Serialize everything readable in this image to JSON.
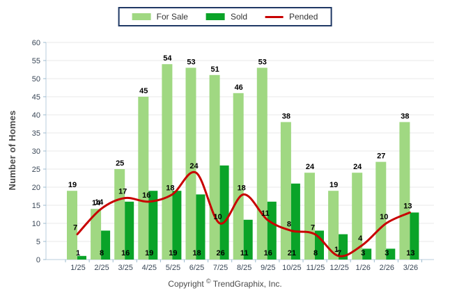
{
  "legend": {
    "items": [
      {
        "label": "For Sale",
        "color": "#A0D882",
        "type": "bar"
      },
      {
        "label": "Sold",
        "color": "#0AA328",
        "type": "bar"
      },
      {
        "label": "Pended",
        "color": "#C80000",
        "type": "line"
      }
    ]
  },
  "y_axis": {
    "title": "Number of Homes",
    "min": 0,
    "max": 60,
    "step": 5
  },
  "footer": {
    "copyright_prefix": "Copyright",
    "copyright_symbol": "©",
    "copyright_suffix": "TrendGraphix, Inc."
  },
  "colors": {
    "for_sale_bar": "#A0D882",
    "sold_bar": "#0AA328",
    "pended_line": "#C80000",
    "gridline": "#E9E9E9",
    "axis_line": "#B9CEDE",
    "tick_mark": "#9DBBCF",
    "tick_text": "#3A4757",
    "legend_border": "#1F3864"
  },
  "chart_data": {
    "type": "bar",
    "title": "",
    "xlabel": "",
    "ylabel": "Number of Homes",
    "ylim": [
      0,
      60
    ],
    "ytick_step": 5,
    "grid": true,
    "legend_position": "top-center",
    "categories": [
      "1/25",
      "2/25",
      "3/25",
      "4/25",
      "5/25",
      "6/25",
      "7/25",
      "8/25",
      "9/25",
      "10/25",
      "11/25",
      "12/25",
      "1/26",
      "2/26",
      "3/26"
    ],
    "series": [
      {
        "name": "For Sale",
        "type": "bar",
        "color": "#A0D882",
        "values": [
          19,
          14,
          25,
          45,
          54,
          53,
          51,
          46,
          53,
          38,
          24,
          19,
          24,
          27,
          38
        ]
      },
      {
        "name": "Sold",
        "type": "bar",
        "color": "#0AA328",
        "values": [
          1,
          8,
          16,
          19,
          19,
          18,
          26,
          11,
          16,
          21,
          8,
          7,
          3,
          3,
          13
        ]
      },
      {
        "name": "Pended",
        "type": "line",
        "color": "#C80000",
        "values": [
          7,
          14,
          17,
          16,
          18,
          24,
          10,
          18,
          11,
          8,
          7,
          1,
          4,
          10,
          13
        ]
      }
    ]
  }
}
